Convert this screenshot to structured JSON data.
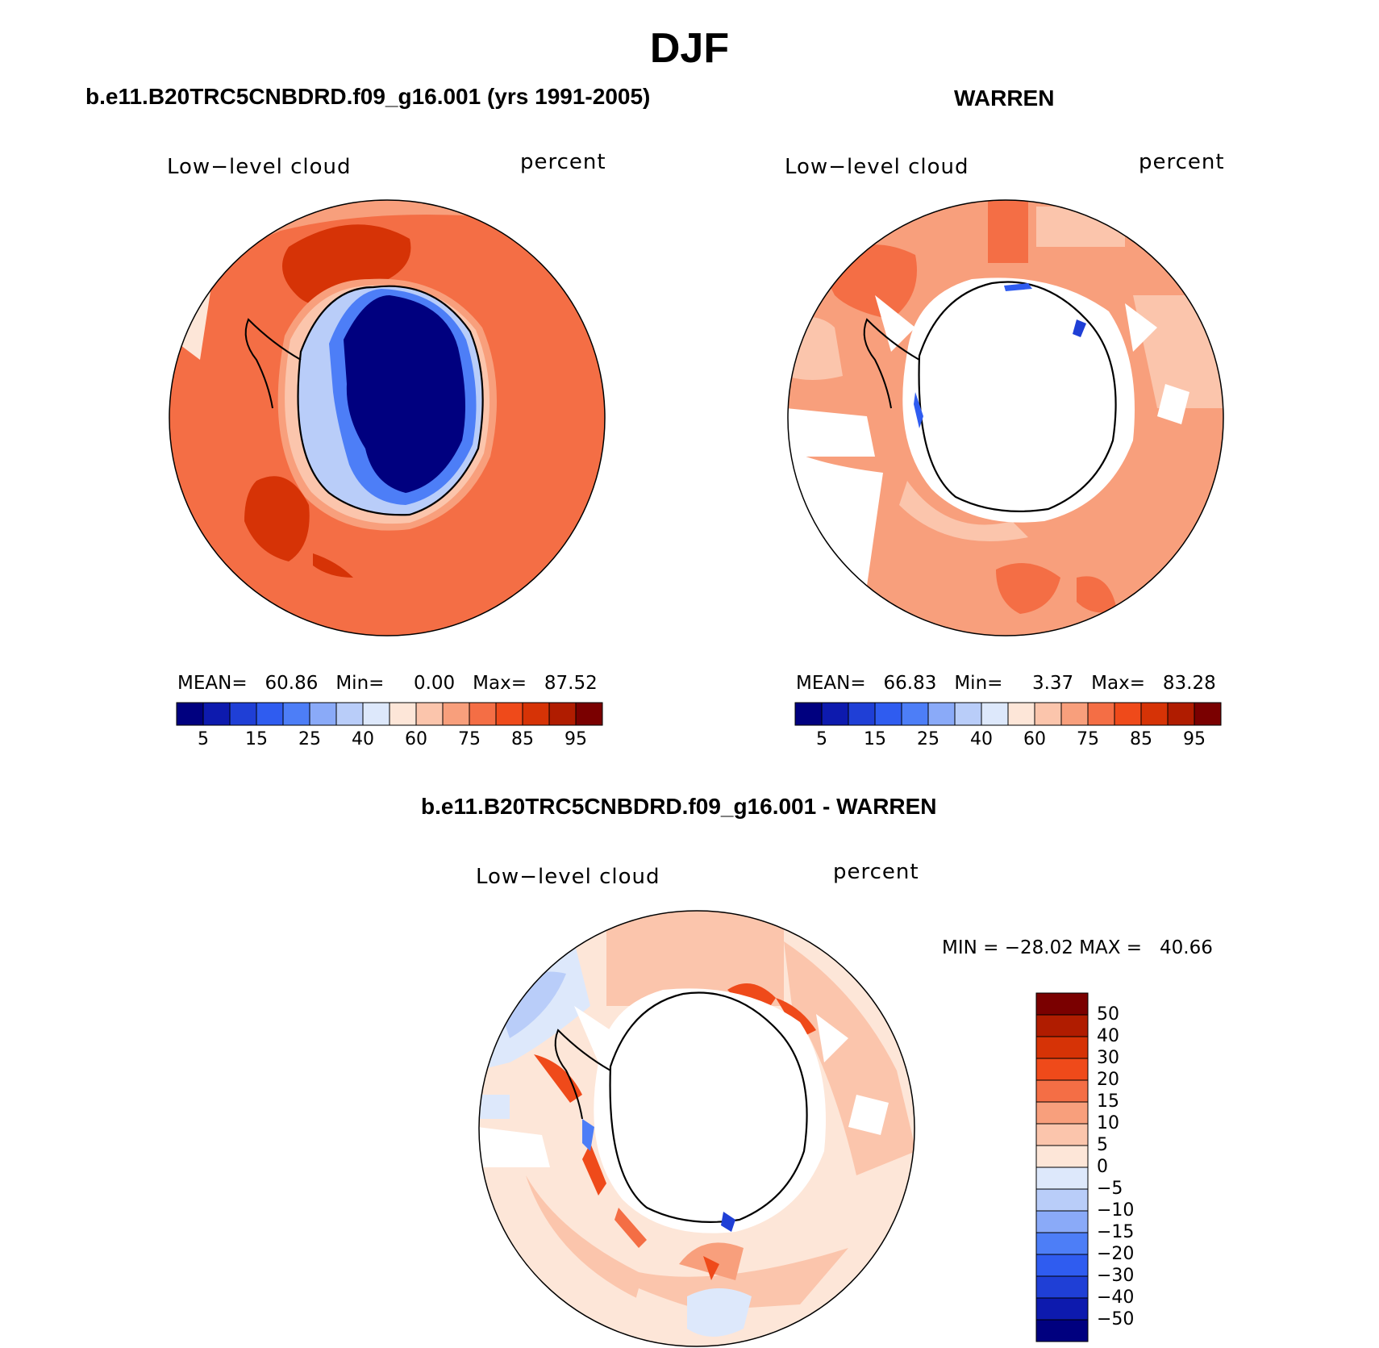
{
  "title": "DJF",
  "panels": {
    "model": {
      "title": "b.e11.B20TRC5CNBDRD.f09_g16.001 (yrs 1991-2005)",
      "variable": "Low−level cloud",
      "units": "percent",
      "mean_label": "MEAN=",
      "mean": "60.86",
      "min_label": "Min=",
      "min": "0.00",
      "max_label": "Max=",
      "max": "87.52"
    },
    "obs": {
      "title": "WARREN",
      "variable": "Low−level cloud",
      "units": "percent",
      "mean_label": "MEAN=",
      "mean": "66.83",
      "min_label": "Min=",
      "min": "3.37",
      "max_label": "Max=",
      "max": "83.28"
    },
    "diff": {
      "title": "b.e11.B20TRC5CNBDRD.f09_g16.001 - WARREN",
      "variable": "Low−level cloud",
      "units": "percent",
      "minmax_text": "MIN = −28.02 MAX =   40.66"
    }
  },
  "colorbar_abs": {
    "colors": [
      "#00007f",
      "#0d1aae",
      "#1f3fd6",
      "#2f5cf0",
      "#4d7ef7",
      "#8aaaf8",
      "#b9cdf9",
      "#dde8fb",
      "#fde6d8",
      "#fbc5ac",
      "#f89f7c",
      "#f46e45",
      "#ef4a1a",
      "#d63306",
      "#b01c00",
      "#7a0000"
    ],
    "labels": [
      "5",
      "15",
      "25",
      "40",
      "60",
      "75",
      "85",
      "95"
    ]
  },
  "colorbar_diff": {
    "colors": [
      "#7a0000",
      "#b01c00",
      "#d63306",
      "#ef4a1a",
      "#f46e45",
      "#f89f7c",
      "#fbc5ac",
      "#fde6d8",
      "#dde8fb",
      "#b9cdf9",
      "#8aaaf8",
      "#4d7ef7",
      "#2f5cf0",
      "#1f3fd6",
      "#0d1aae",
      "#00007f"
    ],
    "labels": [
      "50",
      "40",
      "30",
      "20",
      "15",
      "10",
      "5",
      "0",
      "−5",
      "−10",
      "−15",
      "−20",
      "−30",
      "−40",
      "−50"
    ]
  }
}
